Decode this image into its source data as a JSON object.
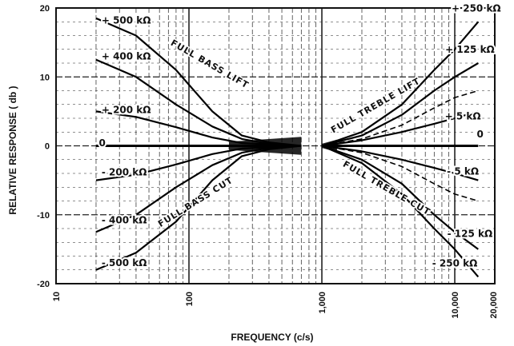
{
  "chart_data": {
    "type": "line",
    "title": "",
    "xlabel": "FREQUENCY (c/s)",
    "ylabel": "RELATIVE RESPONSE ( db )",
    "xscale": "log",
    "xlim": [
      10,
      20000
    ],
    "ylim": [
      -20,
      20
    ],
    "x_ticks": [
      {
        "value": 10,
        "label": "10"
      },
      {
        "value": 100,
        "label": "100"
      },
      {
        "value": 1000,
        "label": "1,000"
      },
      {
        "value": 10000,
        "label": "10,000"
      },
      {
        "value": 20000,
        "label": "20,000"
      }
    ],
    "y_ticks": [
      {
        "value": 20,
        "label": "20"
      },
      {
        "value": 10,
        "label": "10"
      },
      {
        "value": 0,
        "label": "0"
      },
      {
        "value": -10,
        "label": "-10"
      },
      {
        "value": -20,
        "label": "-20"
      }
    ],
    "grid": true,
    "bass_series": [
      {
        "label": "+ 500 kΩ",
        "points": [
          [
            20,
            18.5
          ],
          [
            40,
            16
          ],
          [
            80,
            11
          ],
          [
            150,
            5
          ],
          [
            250,
            1.5
          ],
          [
            400,
            0.5
          ],
          [
            700,
            0
          ]
        ]
      },
      {
        "label": "+ 400 kΩ",
        "points": [
          [
            20,
            12.5
          ],
          [
            40,
            10
          ],
          [
            80,
            6
          ],
          [
            150,
            2.8
          ],
          [
            250,
            1
          ],
          [
            400,
            0.3
          ],
          [
            700,
            0
          ]
        ]
      },
      {
        "label": "+ 200 kΩ",
        "points": [
          [
            20,
            5
          ],
          [
            40,
            4.2
          ],
          [
            80,
            2.7
          ],
          [
            150,
            1.2
          ],
          [
            250,
            0.4
          ],
          [
            700,
            0
          ]
        ]
      },
      {
        "label": "0",
        "points": [
          [
            20,
            0
          ],
          [
            700,
            0
          ]
        ]
      },
      {
        "label": "- 200 kΩ",
        "points": [
          [
            20,
            -5
          ],
          [
            40,
            -4.2
          ],
          [
            80,
            -2.7
          ],
          [
            150,
            -1.2
          ],
          [
            250,
            -0.4
          ],
          [
            700,
            0
          ]
        ]
      },
      {
        "label": "- 400 kΩ",
        "points": [
          [
            20,
            -12.5
          ],
          [
            40,
            -10
          ],
          [
            80,
            -6
          ],
          [
            150,
            -2.8
          ],
          [
            250,
            -1
          ],
          [
            400,
            -0.3
          ],
          [
            700,
            0
          ]
        ]
      },
      {
        "label": "- 500 kΩ",
        "points": [
          [
            20,
            -18
          ],
          [
            40,
            -15.5
          ],
          [
            80,
            -11
          ],
          [
            150,
            -5
          ],
          [
            250,
            -1.5
          ],
          [
            400,
            -0.5
          ],
          [
            700,
            0
          ]
        ]
      }
    ],
    "treble_series": [
      {
        "label": "+ 250 kΩ",
        "points": [
          [
            1000,
            0
          ],
          [
            2000,
            2
          ],
          [
            4000,
            6
          ],
          [
            7000,
            11
          ],
          [
            10000,
            14
          ],
          [
            15000,
            18
          ]
        ]
      },
      {
        "label": "+ 125 kΩ",
        "points": [
          [
            1000,
            0
          ],
          [
            2000,
            1.5
          ],
          [
            4000,
            4.5
          ],
          [
            7000,
            8
          ],
          [
            10000,
            10
          ],
          [
            15000,
            12
          ]
        ]
      },
      {
        "label": "+ 5 kΩ",
        "points": [
          [
            1000,
            0
          ],
          [
            2000,
            0.8
          ],
          [
            4000,
            2
          ],
          [
            7000,
            3.2
          ],
          [
            10000,
            4
          ],
          [
            15000,
            5
          ]
        ]
      },
      {
        "label": "0",
        "points": [
          [
            1000,
            0
          ],
          [
            15000,
            0
          ]
        ]
      },
      {
        "label": "- 5 kΩ",
        "points": [
          [
            1000,
            0
          ],
          [
            2000,
            -0.8
          ],
          [
            4000,
            -2
          ],
          [
            7000,
            -3.2
          ],
          [
            10000,
            -4
          ],
          [
            15000,
            -5
          ]
        ]
      },
      {
        "label": "- 125 kΩ",
        "points": [
          [
            1000,
            0
          ],
          [
            2000,
            -2
          ],
          [
            4000,
            -5.5
          ],
          [
            7000,
            -10
          ],
          [
            10000,
            -12.5
          ],
          [
            15000,
            -15
          ]
        ]
      },
      {
        "label": "- 250 kΩ",
        "points": [
          [
            1000,
            0
          ],
          [
            2000,
            -2.5
          ],
          [
            4000,
            -7
          ],
          [
            7000,
            -12
          ],
          [
            10000,
            -15
          ],
          [
            15000,
            -19
          ]
        ]
      }
    ],
    "treble_dashed_series": [
      {
        "points": [
          [
            1000,
            0
          ],
          [
            2000,
            1
          ],
          [
            4000,
            3
          ],
          [
            7000,
            5.5
          ],
          [
            10000,
            7
          ],
          [
            15000,
            8
          ]
        ]
      },
      {
        "points": [
          [
            1000,
            0
          ],
          [
            2000,
            -1
          ],
          [
            4000,
            -3
          ],
          [
            7000,
            -5.5
          ],
          [
            10000,
            -7
          ],
          [
            15000,
            -8
          ]
        ]
      }
    ],
    "band_annotations": [
      "FULL BASS LIFT",
      "FULL BASS CUT",
      "FULL TREBLE LIFT",
      "FULL TREBLE CUT"
    ]
  }
}
